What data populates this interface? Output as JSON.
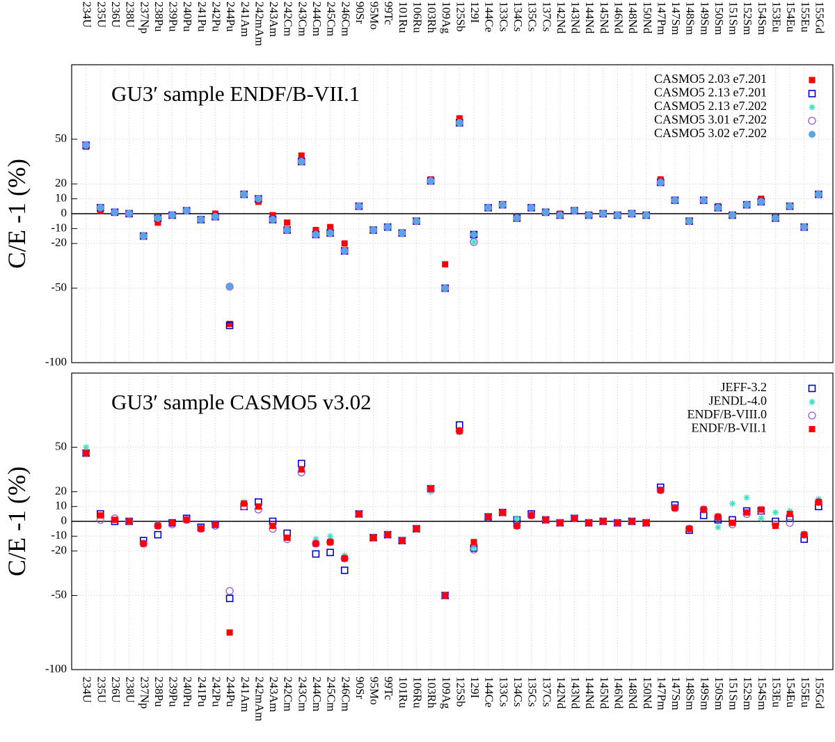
{
  "chart_data": [
    {
      "type": "scatter",
      "title": "GU3′ sample ENDF/B-VII.1",
      "ylabel": "C/E -1 (%)",
      "category_labels": "top",
      "categories": [
        "234U",
        "235U",
        "236U",
        "238U",
        "237Np",
        "238Pu",
        "239Pu",
        "240Pu",
        "241Pu",
        "242Pu",
        "244Pu",
        "241Am",
        "242mAm",
        "243Am",
        "242Cm",
        "243Cm",
        "244Cm",
        "245Cm",
        "246Cm",
        "90Sr",
        "95Mo",
        "99Tc",
        "101Ru",
        "106Ru",
        "103Rh",
        "109Ag",
        "125Sb",
        "129I",
        "144Ce",
        "133Cs",
        "134Cs",
        "135Cs",
        "137Cs",
        "142Nd",
        "143Nd",
        "144Nd",
        "145Nd",
        "146Nd",
        "148Nd",
        "150Nd",
        "147Pm",
        "147Sm",
        "148Sm",
        "149Sm",
        "150Sm",
        "151Sm",
        "152Sm",
        "154Sm",
        "153Eu",
        "154Eu",
        "155Eu",
        "155Gd"
      ],
      "ylim": [
        -100,
        100
      ],
      "yticks": [
        -100,
        -50,
        -20,
        -10,
        0,
        10,
        20,
        50
      ],
      "grid": true,
      "legend": "upper right",
      "series": [
        {
          "name": "CASMO5 2.03 e7.201",
          "color": "#ff0000",
          "marker": "filled-square",
          "values": [
            45,
            2,
            1,
            0,
            -15,
            -6,
            -1,
            2,
            -4,
            0,
            -74,
            13,
            8,
            -1,
            -6,
            39,
            -11,
            -9,
            -20,
            5,
            -11,
            -9,
            -13,
            -5,
            23,
            -34,
            64,
            -14,
            4,
            6,
            -3,
            4,
            1,
            0,
            2,
            -1,
            0,
            -1,
            0,
            -1,
            23,
            9,
            -5,
            9,
            5,
            -1,
            6,
            10,
            -3,
            5,
            -9,
            13
          ]
        },
        {
          "name": "CASMO5 2.13 e7.201",
          "color": "#0000cc",
          "marker": "open-square",
          "values": [
            46,
            4,
            1,
            0,
            -15,
            -3,
            -1,
            2,
            -4,
            -2,
            -75,
            13,
            10,
            -4,
            -11,
            35,
            -14,
            -13,
            -25,
            5,
            -11,
            -9,
            -13,
            -5,
            22,
            -50,
            61,
            -14,
            4,
            6,
            -3,
            4,
            1,
            -1,
            2,
            -1,
            0,
            -1,
            0,
            -1,
            21,
            9,
            -5,
            9,
            4,
            -1,
            6,
            8,
            -3,
            5,
            -9,
            13
          ]
        },
        {
          "name": "CASMO5 2.13 e7.202",
          "color": "#40e0c0",
          "marker": "asterisk",
          "values": [
            46,
            4,
            1,
            0,
            -15,
            -3,
            -1,
            2,
            -4,
            -2,
            -49,
            13,
            10,
            -4,
            -11,
            35,
            -14,
            -13,
            -25,
            5,
            -11,
            -9,
            -13,
            -5,
            22,
            -50,
            61,
            -19,
            4,
            6,
            -3,
            4,
            1,
            -1,
            2,
            -1,
            0,
            -1,
            0,
            -1,
            21,
            9,
            -5,
            9,
            4,
            -1,
            6,
            8,
            -3,
            5,
            -9,
            13
          ]
        },
        {
          "name": "CASMO5 3.01 e7.202",
          "color": "#9955dd",
          "marker": "open-circle",
          "values": [
            46,
            4,
            1,
            0,
            -15,
            -3,
            -1,
            2,
            -4,
            -2,
            -49,
            13,
            10,
            -4,
            -11,
            35,
            -14,
            -13,
            -25,
            5,
            -11,
            -9,
            -13,
            -5,
            22,
            -50,
            61,
            -19,
            4,
            6,
            -3,
            4,
            1,
            -1,
            2,
            -1,
            0,
            -1,
            0,
            -1,
            21,
            9,
            -5,
            9,
            4,
            -1,
            6,
            8,
            -3,
            5,
            -9,
            13
          ]
        },
        {
          "name": "CASMO5 3.02 e7.202",
          "color": "#5aa5e0",
          "marker": "filled-circle",
          "values": [
            46,
            4,
            1,
            0,
            -15,
            -3,
            -1,
            2,
            -4,
            -2,
            -49,
            13,
            10,
            -4,
            -11,
            35,
            -14,
            -13,
            -25,
            5,
            -11,
            -9,
            -13,
            -5,
            22,
            -50,
            61,
            -14,
            4,
            6,
            -3,
            4,
            1,
            -1,
            2,
            -1,
            0,
            -1,
            0,
            -1,
            21,
            9,
            -5,
            9,
            4,
            -1,
            6,
            8,
            -3,
            5,
            -9,
            13
          ]
        }
      ]
    },
    {
      "type": "scatter",
      "title": "GU3′ sample CASMO5 v3.02",
      "ylabel": "C/E -1 (%)",
      "category_labels": "bottom",
      "categories": [
        "234U",
        "235U",
        "236U",
        "238U",
        "237Np",
        "238Pu",
        "239Pu",
        "240Pu",
        "241Pu",
        "242Pu",
        "244Pu",
        "241Am",
        "242mAm",
        "243Am",
        "242Cm",
        "243Cm",
        "244Cm",
        "245Cm",
        "246Cm",
        "90Sr",
        "95Mo",
        "99Tc",
        "101Ru",
        "106Ru",
        "103Rh",
        "109Ag",
        "125Sb",
        "129I",
        "144Ce",
        "133Cs",
        "134Cs",
        "135Cs",
        "137Cs",
        "142Nd",
        "143Nd",
        "144Nd",
        "145Nd",
        "146Nd",
        "148Nd",
        "150Nd",
        "147Pm",
        "147Sm",
        "148Sm",
        "149Sm",
        "150Sm",
        "151Sm",
        "152Sm",
        "154Sm",
        "153Eu",
        "154Eu",
        "155Eu",
        "155Gd"
      ],
      "ylim": [
        -100,
        100
      ],
      "yticks": [
        -100,
        -50,
        -20,
        -10,
        0,
        10,
        20,
        50
      ],
      "grid": true,
      "legend": "upper right",
      "series": [
        {
          "name": "JEFF-3.2",
          "color": "#0000cc",
          "marker": "open-square",
          "values": [
            46,
            5,
            0,
            0,
            -13,
            -9,
            -1,
            2,
            -4,
            -2,
            -52,
            10,
            13,
            0,
            -8,
            39,
            -22,
            -21,
            -33,
            5,
            -11,
            -9,
            -13,
            -5,
            22,
            -50,
            65,
            -18,
            3,
            6,
            1,
            5,
            1,
            -1,
            2,
            -1,
            0,
            -1,
            0,
            -1,
            23,
            11,
            -6,
            4,
            1,
            1,
            7,
            7,
            0,
            2,
            -12,
            10
          ]
        },
        {
          "name": "JENDL-4.0",
          "color": "#40e0c0",
          "marker": "asterisk",
          "values": [
            50,
            4,
            1,
            0,
            -15,
            -2,
            -1,
            1,
            -5,
            -2,
            null,
            13,
            10,
            -3,
            -11,
            35,
            -12,
            -10,
            -23,
            5,
            -11,
            -9,
            -13,
            -5,
            20,
            -50,
            60,
            -18,
            3,
            6,
            2,
            4,
            1,
            -1,
            2,
            -1,
            0,
            -1,
            0,
            -1,
            21,
            10,
            -5,
            8,
            -4,
            12,
            16,
            2,
            6,
            7,
            -9,
            15
          ]
        },
        {
          "name": "ENDF/B-VIII.0",
          "color": "#9955dd",
          "marker": "open-circle",
          "values": [
            46,
            1,
            2,
            0,
            -15,
            -3,
            -2,
            1,
            -5,
            -3,
            -47,
            10,
            8,
            -5,
            -12,
            33,
            -15,
            -14,
            -25,
            5,
            -11,
            -9,
            -13,
            -5,
            22,
            -50,
            61,
            -19,
            3,
            6,
            -3,
            4,
            1,
            -1,
            2,
            -1,
            0,
            -1,
            0,
            -1,
            21,
            9,
            -5,
            8,
            3,
            -2,
            5,
            7,
            -2,
            -1,
            -9,
            13
          ]
        },
        {
          "name": "ENDF/B-VII.1",
          "color": "#ff0000",
          "marker": "filled-square",
          "values": [
            46,
            4,
            1,
            0,
            -15,
            -3,
            -1,
            1,
            -5,
            -2,
            -75,
            12,
            10,
            -3,
            -11,
            35,
            -15,
            -14,
            -25,
            5,
            -11,
            -9,
            -13,
            -5,
            22,
            -50,
            61,
            -14,
            3,
            6,
            -3,
            4,
            1,
            -1,
            2,
            -1,
            0,
            -1,
            0,
            -1,
            21,
            9,
            -5,
            8,
            3,
            -1,
            6,
            8,
            -3,
            5,
            -9,
            13
          ]
        }
      ]
    }
  ]
}
